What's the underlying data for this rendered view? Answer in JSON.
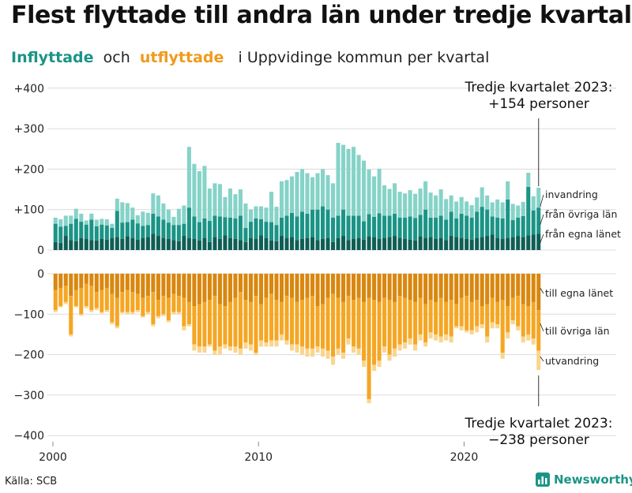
{
  "title": "Flest flyttade till andra län under tredje kvartalet",
  "subtitle": {
    "in_label": "Inflyttade",
    "and_word": "och",
    "out_label": "utflyttade",
    "rest": "i Uppvidinge  kommun  per  kvartal"
  },
  "source": "Källa: SCB",
  "brand": "Newsworthy",
  "colors": {
    "in_egna": "#0f5e55",
    "in_ovriga": "#1a9486",
    "in_invandring": "#86d3c8",
    "out_egna": "#d9870f",
    "out_ovriga": "#f5a623",
    "out_utvandring": "#fad58e"
  },
  "annotations": {
    "top_line1": "Tredje kvartalet 2023:",
    "top_line2": "+154 personer",
    "bottom_line1": "Tredje kvartalet 2023:",
    "bottom_line2": "−238 personer"
  },
  "chart_data": {
    "type": "bar",
    "stacked": true,
    "x_start": "2000 Q1",
    "x_end": "2023 Q3",
    "x_ticks": [
      "2000",
      "2010",
      "2020"
    ],
    "y_ticks_top": [
      "+400",
      "+300",
      "+200",
      "+100",
      "0"
    ],
    "y_ticks_bottom": [
      "0",
      "−100",
      "−200",
      "−300",
      "−400"
    ],
    "ylim_in": [
      0,
      400
    ],
    "ylim_out": [
      -400,
      0
    ],
    "series_in": [
      {
        "name": "från egna länet",
        "values": [
          20,
          18,
          35,
          25,
          22,
          30,
          28,
          25,
          24,
          28,
          26,
          30,
          32,
          28,
          34,
          30,
          26,
          30,
          32,
          40,
          35,
          30,
          28,
          25,
          22,
          35,
          30,
          28,
          24,
          30,
          20,
          32,
          28,
          36,
          30,
          28,
          25,
          20,
          30,
          28,
          36,
          30,
          24,
          22,
          35,
          30,
          32,
          25,
          28,
          30,
          32,
          25,
          28,
          30,
          20,
          30,
          35,
          25,
          28,
          30,
          26,
          34,
          32,
          28,
          30,
          32,
          35,
          30,
          28,
          26,
          24,
          34,
          30,
          32,
          28,
          30,
          25,
          35,
          32,
          30,
          28,
          26,
          30,
          32,
          35,
          38,
          30,
          28,
          30,
          32,
          35,
          32,
          36,
          38,
          40
        ]
      },
      {
        "name": "från övriga län",
        "values": [
          45,
          40,
          25,
          40,
          55,
          40,
          35,
          50,
          35,
          35,
          35,
          25,
          65,
          40,
          35,
          45,
          40,
          30,
          30,
          50,
          48,
          45,
          40,
          37,
          40,
          30,
          75,
          55,
          45,
          48,
          52,
          53,
          55,
          45,
          50,
          50,
          60,
          35,
          40,
          50,
          40,
          40,
          45,
          40,
          45,
          55,
          60,
          58,
          67,
          60,
          68,
          75,
          80,
          70,
          60,
          55,
          65,
          60,
          57,
          55,
          45,
          55,
          50,
          63,
          55,
          53,
          55,
          50,
          52,
          57,
          55,
          53,
          70,
          48,
          52,
          55,
          50,
          60,
          46,
          60,
          57,
          54,
          65,
          75,
          65,
          45,
          50,
          50,
          95,
          42,
          45,
          52,
          120,
          60,
          65
        ]
      },
      {
        "name": "invandring",
        "values": [
          15,
          18,
          25,
          20,
          25,
          20,
          10,
          15,
          16,
          14,
          15,
          10,
          30,
          50,
          47,
          30,
          20,
          35,
          30,
          50,
          52,
          40,
          32,
          20,
          40,
          45,
          150,
          130,
          126,
          130,
          80,
          80,
          80,
          50,
          72,
          60,
          65,
          60,
          30,
          30,
          32,
          35,
          75,
          45,
          90,
          88,
          90,
          110,
          105,
          100,
          80,
          90,
          92,
          85,
          85,
          180,
          160,
          165,
          170,
          150,
          150,
          110,
          100,
          110,
          75,
          66,
          75,
          64,
          60,
          65,
          60,
          65,
          70,
          62,
          55,
          65,
          51,
          40,
          42,
          41,
          35,
          31,
          35,
          48,
          35,
          35,
          45,
          40,
          45,
          40,
          30,
          35,
          35,
          35,
          49
        ]
      }
    ],
    "series_out": [
      {
        "name": "till egna länet",
        "values": [
          -40,
          -35,
          -30,
          -55,
          -40,
          -35,
          -25,
          -30,
          -45,
          -40,
          -35,
          -50,
          -60,
          -45,
          -40,
          -45,
          -50,
          -60,
          -55,
          -45,
          -65,
          -55,
          -60,
          -50,
          -55,
          -60,
          -70,
          -80,
          -75,
          -70,
          -65,
          -55,
          -75,
          -80,
          -70,
          -60,
          -45,
          -65,
          -70,
          -55,
          -75,
          -60,
          -50,
          -65,
          -70,
          -55,
          -60,
          -70,
          -65,
          -60,
          -55,
          -80,
          -75,
          -60,
          -50,
          -60,
          -70,
          -55,
          -65,
          -60,
          -70,
          -60,
          -65,
          -70,
          -60,
          -65,
          -70,
          -55,
          -60,
          -65,
          -70,
          -60,
          -75,
          -65,
          -70,
          -60,
          -70,
          -65,
          -75,
          -60,
          -55,
          -70,
          -65,
          -80,
          -75,
          -60,
          -70,
          -65,
          -80,
          -60,
          -55,
          -75,
          -80,
          -70,
          -90
        ]
      },
      {
        "name": "till övriga län",
        "values": [
          -50,
          -45,
          -40,
          -95,
          -40,
          -65,
          -55,
          -60,
          -40,
          -55,
          -55,
          -70,
          -70,
          -50,
          -55,
          -50,
          -40,
          -45,
          -40,
          -80,
          -40,
          -45,
          -55,
          -45,
          -40,
          -70,
          -55,
          -95,
          -105,
          -110,
          -110,
          -135,
          -105,
          -95,
          -110,
          -120,
          -140,
          -105,
          -105,
          -140,
          -90,
          -110,
          -115,
          -100,
          -80,
          -110,
          -115,
          -105,
          -115,
          -125,
          -130,
          -100,
          -110,
          -130,
          -155,
          -125,
          -125,
          -105,
          -115,
          -125,
          -145,
          -250,
          -160,
          -145,
          -120,
          -135,
          -115,
          -120,
          -110,
          -95,
          -105,
          -90,
          -95,
          -80,
          -80,
          -95,
          -80,
          -90,
          -55,
          -70,
          -85,
          -70,
          -65,
          -45,
          -80,
          -60,
          -55,
          -130,
          -65,
          -55,
          -75,
          -80,
          -70,
          -90,
          -100
        ]
      },
      {
        "name": "utvandring",
        "values": [
          -5,
          -3,
          -5,
          -5,
          -3,
          -4,
          -5,
          -5,
          -5,
          -3,
          -5,
          -5,
          -5,
          -3,
          -5,
          -5,
          -5,
          -3,
          -5,
          -5,
          -5,
          -5,
          -5,
          -5,
          -5,
          -10,
          -5,
          -15,
          -15,
          -15,
          -5,
          -10,
          -20,
          -10,
          -10,
          -15,
          -15,
          -15,
          -15,
          -5,
          -15,
          -10,
          -15,
          -15,
          -15,
          -10,
          -15,
          -20,
          -20,
          -20,
          -20,
          -15,
          -20,
          -20,
          -20,
          -15,
          -15,
          -15,
          -15,
          -15,
          -15,
          -10,
          -15,
          -15,
          -15,
          -15,
          -20,
          -15,
          -15,
          -15,
          -15,
          -15,
          -10,
          -15,
          -15,
          -15,
          -15,
          -15,
          -5,
          -10,
          -5,
          -10,
          -15,
          -10,
          -15,
          -15,
          -10,
          -15,
          -15,
          -10,
          -10,
          -15,
          -15,
          -15,
          -48
        ]
      }
    ],
    "labels_in": [
      "invandring",
      "från övriga län",
      "från egna länet"
    ],
    "labels_out": [
      "till egna länet",
      "till övriga län",
      "utvandring"
    ]
  }
}
